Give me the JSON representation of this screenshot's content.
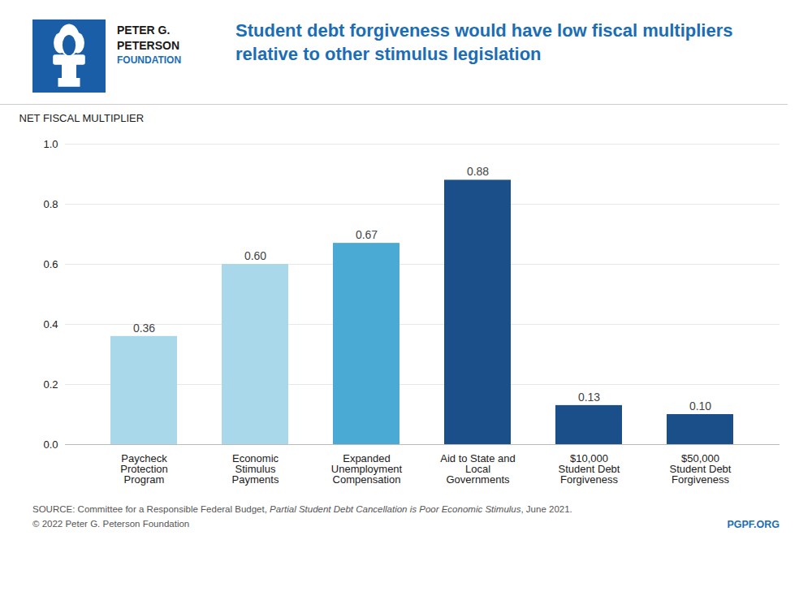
{
  "chart_data": {
    "type": "bar",
    "title": "Student debt forgiveness would have low fiscal multipliers\nrelative to other stimulus legislation",
    "categories": [
      "Paycheck\nProtection\nProgram",
      "Economic\nStimulus\nPayments",
      "Expanded\nUnemployment\nCompensation",
      "Aid to State and\nLocal\nGovernments",
      "$10,000\nStudent Debt\nForgiveness",
      "$50,000\nStudent Debt\nForgiveness"
    ],
    "values": [
      0.36,
      0.6,
      0.67,
      0.88,
      0.13,
      0.1
    ],
    "value_labels": [
      "0.36",
      "0.60",
      "0.67",
      "0.88",
      "0.13",
      "0.10"
    ],
    "colors": [
      "#A8D8EA",
      "#A8D8EA",
      "#4BAAD3",
      "#1B4F8A",
      "#1B4F8A",
      "#1B4F8A"
    ],
    "ylabel": "NET FISCAL MULTIPLIER",
    "ylim": [
      0,
      1.0
    ],
    "yticks": [
      {
        "value": 0.0,
        "label": "0.0"
      },
      0.2,
      0.4,
      0.6,
      0.8,
      {
        "value": 1.0,
        "label": "1.0"
      }
    ],
    "grid": true,
    "data_labels": true,
    "logo_text": [
      "PETER G.",
      "PETERSON",
      "FOUNDATION"
    ],
    "source": [
      "SOURCE: Committee for a Responsible Federal Budget, ",
      "Partial Student Debt Cancellation is Poor Economic Stimulus",
      ", June 2021."
    ],
    "copyright": "© 2022 Peter G. Peterson Foundation",
    "site": "PGPF.ORG"
  }
}
